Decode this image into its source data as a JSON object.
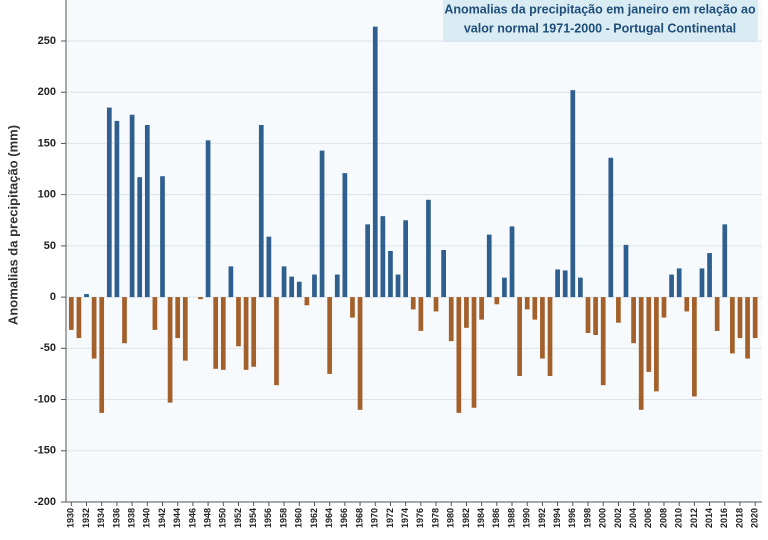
{
  "chart_data": {
    "type": "bar",
    "title": [
      "Anomalias da precipitação em janeiro em relação ao",
      "valor normal  1971-2000 - Portugal Continental"
    ],
    "y_label": "Anomalias da precipitação (mm)",
    "x": [
      1930,
      1931,
      1932,
      1933,
      1934,
      1935,
      1936,
      1937,
      1938,
      1939,
      1940,
      1941,
      1942,
      1943,
      1944,
      1945,
      1946,
      1947,
      1948,
      1949,
      1950,
      1951,
      1952,
      1953,
      1954,
      1955,
      1956,
      1957,
      1958,
      1959,
      1960,
      1961,
      1962,
      1963,
      1964,
      1965,
      1966,
      1967,
      1968,
      1969,
      1970,
      1971,
      1972,
      1973,
      1974,
      1975,
      1976,
      1977,
      1978,
      1979,
      1980,
      1981,
      1982,
      1983,
      1984,
      1985,
      1986,
      1987,
      1988,
      1989,
      1990,
      1991,
      1992,
      1993,
      1994,
      1995,
      1996,
      1997,
      1998,
      1999,
      2000,
      2001,
      2002,
      2003,
      2004,
      2005,
      2006,
      2007,
      2008,
      2009,
      2010,
      2011,
      2012,
      2013,
      2014,
      2015,
      2016,
      2017,
      2018,
      2019,
      2020
    ],
    "values": [
      -32,
      -40,
      3,
      -60,
      -113,
      185,
      172,
      -45,
      178,
      117,
      168,
      -32,
      118,
      -103,
      -40,
      -62,
      0,
      -2,
      153,
      -70,
      -71,
      30,
      -48,
      -71,
      -68,
      168,
      59,
      -86,
      30,
      20,
      15,
      -8,
      22,
      143,
      -75,
      22,
      121,
      -20,
      -110,
      71,
      264,
      79,
      45,
      22,
      75,
      -12,
      -33,
      95,
      -14,
      46,
      -43,
      -113,
      -30,
      -108,
      -22,
      61,
      -7,
      19,
      69,
      -77,
      -12,
      -22,
      -60,
      -77,
      27,
      26,
      202,
      19,
      -35,
      -37,
      -86,
      136,
      -25,
      51,
      -45,
      -110,
      -73,
      -92,
      -20,
      22,
      28,
      -14,
      -97,
      28,
      43,
      -33,
      71,
      -55,
      -40,
      -60,
      -40
    ],
    "positive_color": "#2f5f8e",
    "negative_color": "#a3602b",
    "xlim": [
      1929.3,
      2020.9
    ],
    "xticks": [
      1930,
      1932,
      1934,
      1936,
      1938,
      1940,
      1942,
      1944,
      1946,
      1948,
      1950,
      1952,
      1954,
      1956,
      1958,
      1960,
      1962,
      1964,
      1966,
      1968,
      1970,
      1972,
      1974,
      1976,
      1978,
      1980,
      1982,
      1984,
      1986,
      1988,
      1990,
      1992,
      1994,
      1996,
      1998,
      2000,
      2002,
      2004,
      2006,
      2008,
      2010,
      2012,
      2014,
      2016,
      2018,
      2020
    ],
    "ylim": [
      -200,
      290
    ],
    "yticks": [
      -200,
      -150,
      -100,
      -50,
      0,
      50,
      100,
      150,
      200,
      250
    ],
    "grid": true
  }
}
